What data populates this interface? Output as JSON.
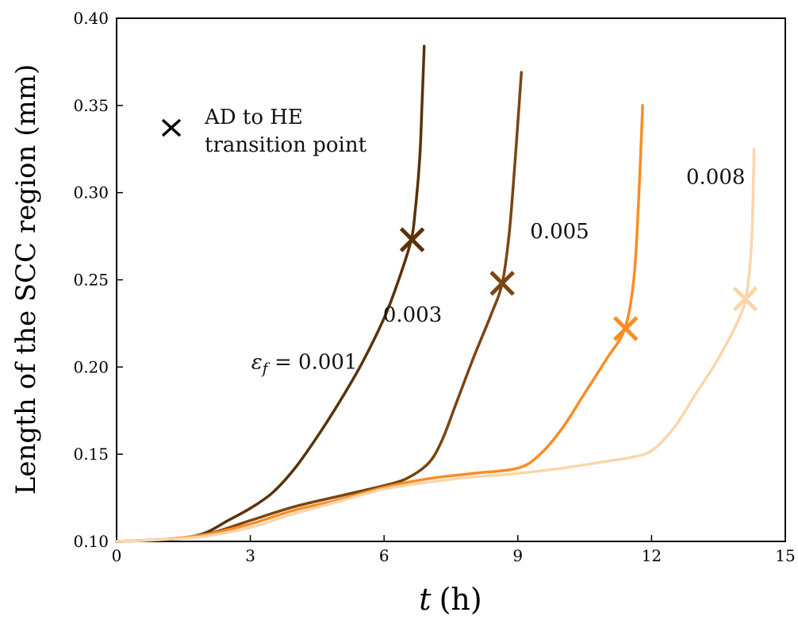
{
  "chart_data": {
    "type": "line",
    "title": "",
    "xlabel": "t (h)",
    "xlabel_var": "t",
    "xlabel_unit": "(h)",
    "ylabel": "Length of the SCC region (mm)",
    "xlim": [
      0,
      15
    ],
    "ylim": [
      0.1,
      0.4
    ],
    "xticks": [
      0,
      3,
      6,
      9,
      12,
      15
    ],
    "yticks": [
      0.1,
      0.15,
      0.2,
      0.25,
      0.3,
      0.35,
      0.4
    ],
    "grid": false,
    "legend": {
      "marker": "x",
      "line1": "AD to HE",
      "line2": "transition point",
      "placement": "top-left"
    },
    "series": [
      {
        "label": "εf = 0.001",
        "color": "#5a3206",
        "x": [
          0,
          1.0,
          1.5,
          2.0,
          2.5,
          3.0,
          3.5,
          4.0,
          4.5,
          5.0,
          5.5,
          6.0,
          6.3,
          6.6,
          6.7,
          6.8,
          6.85,
          6.9
        ],
        "y": [
          0.1,
          0.101,
          0.102,
          0.105,
          0.112,
          0.119,
          0.128,
          0.142,
          0.16,
          0.18,
          0.202,
          0.228,
          0.248,
          0.272,
          0.29,
          0.32,
          0.35,
          0.384
        ],
        "transition": [
          6.63,
          0.273
        ]
      },
      {
        "label": "0.003",
        "color": "#7a4510",
        "x": [
          0,
          1.0,
          2.0,
          3.0,
          4.0,
          5.0,
          5.5,
          6.0,
          6.5,
          7.0,
          7.3,
          7.6,
          8.0,
          8.4,
          8.65,
          8.8,
          8.9,
          9.0,
          9.08
        ],
        "y": [
          0.1,
          0.101,
          0.104,
          0.112,
          0.12,
          0.126,
          0.129,
          0.132,
          0.136,
          0.145,
          0.158,
          0.178,
          0.205,
          0.23,
          0.248,
          0.275,
          0.305,
          0.34,
          0.369
        ],
        "transition": [
          8.65,
          0.248
        ]
      },
      {
        "label": "0.005",
        "color": "#fb8c23",
        "x": [
          0,
          1.0,
          2.0,
          3.0,
          4.0,
          5.0,
          6.0,
          7.0,
          8.0,
          9.0,
          9.5,
          10.0,
          10.5,
          11.0,
          11.4,
          11.6,
          11.7,
          11.8
        ],
        "y": [
          0.1,
          0.101,
          0.104,
          0.11,
          0.118,
          0.124,
          0.131,
          0.136,
          0.139,
          0.142,
          0.15,
          0.165,
          0.185,
          0.205,
          0.222,
          0.25,
          0.29,
          0.35
        ],
        "transition": [
          11.42,
          0.222
        ]
      },
      {
        "label": "0.008",
        "color": "#fcd5ab",
        "x": [
          0,
          1.0,
          2.0,
          3.0,
          4.0,
          5.0,
          6.0,
          7.0,
          8.0,
          9.0,
          10.0,
          11.0,
          11.5,
          12.0,
          12.5,
          13.0,
          13.5,
          14.0,
          14.15,
          14.25,
          14.3
        ],
        "y": [
          0.1,
          0.101,
          0.103,
          0.108,
          0.116,
          0.123,
          0.13,
          0.134,
          0.137,
          0.139,
          0.142,
          0.146,
          0.148,
          0.152,
          0.165,
          0.185,
          0.205,
          0.23,
          0.245,
          0.275,
          0.325
        ],
        "transition": [
          14.1,
          0.239
        ]
      }
    ],
    "annotations": [
      {
        "text": "εf = 0.001",
        "x": 5.4,
        "y": 0.199
      },
      {
        "text": "0.003",
        "x": 7.3,
        "y": 0.226
      },
      {
        "text": "0.005",
        "x": 10.6,
        "y": 0.274
      },
      {
        "text": "0.008",
        "x": 14.1,
        "y": 0.305
      }
    ]
  }
}
